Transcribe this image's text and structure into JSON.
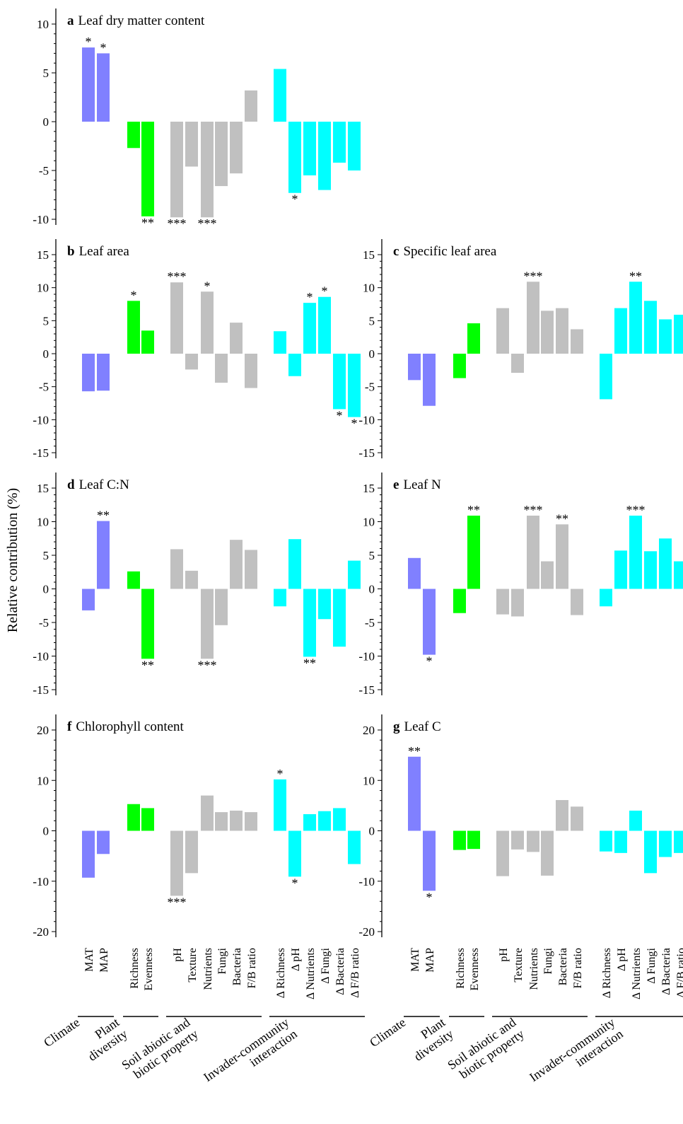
{
  "ylabel": "Relative contribution (%)",
  "colors": {
    "Climate": "#8080ff",
    "Plant diversity": "#00ff00",
    "Soil abiotic and biotic property": "#c0c0c0",
    "Invader-community interaction": "#00ffff"
  },
  "group_labels": [
    [
      "Climate"
    ],
    [
      "Plant",
      "diversity"
    ],
    [
      "Soil abiotic and",
      "biotic property"
    ],
    [
      "Invader-community",
      "interaction"
    ]
  ],
  "categories": [
    "MAT",
    "MAP",
    "Richness",
    "Evenness",
    "pH",
    "Texture",
    "Nutrients",
    "Fungi",
    "Bacteria",
    "F/B ratio",
    "Δ Richness",
    "Δ pH",
    "Δ Nutrients",
    "Δ Fungi",
    "Δ Bacteria",
    "Δ F/B ratio"
  ],
  "chart_data": [
    {
      "type": "bar",
      "letter": "a",
      "title": "Leaf dry matter content",
      "ylim": [
        -10,
        10
      ],
      "yticks": [
        -10,
        -5,
        0,
        5,
        10
      ],
      "values": [
        7.6,
        7.0,
        -2.7,
        -9.7,
        -9.8,
        -4.6,
        -9.8,
        -6.6,
        -5.3,
        3.2,
        5.4,
        -7.3,
        -5.5,
        -7.0,
        -4.2,
        -5.0
      ],
      "significance": [
        "*",
        "*",
        "",
        "**",
        "***",
        "",
        "***",
        "",
        "",
        "",
        "",
        "*",
        "",
        "",
        "",
        ""
      ]
    },
    {
      "type": "bar",
      "letter": "b",
      "title": "Leaf area",
      "ylim": [
        -15,
        15
      ],
      "yticks": [
        -15,
        -10,
        -5,
        0,
        5,
        10,
        15
      ],
      "values": [
        -5.7,
        -5.6,
        8.0,
        3.5,
        10.8,
        -2.4,
        9.4,
        -4.4,
        4.7,
        -5.2,
        3.4,
        -3.4,
        7.7,
        8.6,
        -8.4,
        -9.6
      ],
      "significance": [
        "",
        "",
        "*",
        "",
        "***",
        "",
        "*",
        "",
        "",
        "",
        "",
        "",
        "*",
        "*",
        "*",
        "*"
      ]
    },
    {
      "type": "bar",
      "letter": "c",
      "title": "Specific leaf area",
      "ylim": [
        -15,
        15
      ],
      "yticks": [
        -15,
        -10,
        -5,
        0,
        5,
        10,
        15
      ],
      "values": [
        -4.0,
        -7.9,
        -3.7,
        4.6,
        6.9,
        -2.9,
        10.9,
        6.5,
        6.9,
        3.7,
        -6.9,
        6.9,
        10.9,
        8.0,
        5.2,
        5.9
      ],
      "significance": [
        "",
        "",
        "",
        "",
        "",
        "",
        "***",
        "",
        "",
        "",
        "",
        "",
        "**",
        "",
        "",
        ""
      ]
    },
    {
      "type": "bar",
      "letter": "d",
      "title": "Leaf C:N",
      "ylim": [
        -15,
        15
      ],
      "yticks": [
        -15,
        -10,
        -5,
        0,
        5,
        10,
        15
      ],
      "values": [
        -3.2,
        10.1,
        2.6,
        -10.4,
        5.9,
        2.7,
        -10.4,
        -5.4,
        7.3,
        5.8,
        -2.6,
        7.4,
        -10.1,
        -4.5,
        -8.6,
        4.2
      ],
      "significance": [
        "",
        "**",
        "",
        "**",
        "",
        "",
        "***",
        "",
        "",
        "",
        "",
        "",
        "**",
        "",
        "",
        ""
      ]
    },
    {
      "type": "bar",
      "letter": "e",
      "title": "Leaf N",
      "ylim": [
        -15,
        15
      ],
      "yticks": [
        -15,
        -10,
        -5,
        0,
        5,
        10,
        15
      ],
      "values": [
        4.6,
        -9.8,
        -3.6,
        10.9,
        -3.8,
        -4.1,
        10.9,
        4.1,
        9.6,
        -3.9,
        -2.6,
        5.7,
        10.9,
        5.6,
        7.5,
        4.1
      ],
      "significance": [
        "",
        "*",
        "",
        "**",
        "",
        "",
        "***",
        "",
        "**",
        "",
        "",
        "",
        "***",
        "",
        "",
        ""
      ]
    },
    {
      "type": "bar",
      "letter": "f",
      "title": "Chlorophyll content",
      "ylim": [
        -20,
        20
      ],
      "yticks": [
        -20,
        -10,
        0,
        10,
        20
      ],
      "values": [
        -9.3,
        -4.6,
        5.3,
        4.5,
        -12.9,
        -8.4,
        7.0,
        3.7,
        4.0,
        3.7,
        10.2,
        -9.1,
        3.3,
        3.9,
        4.5,
        -6.6
      ],
      "significance": [
        "",
        "",
        "",
        "",
        "***",
        "",
        "",
        "",
        "",
        "",
        "*",
        "*",
        "",
        "",
        "",
        ""
      ]
    },
    {
      "type": "bar",
      "letter": "g",
      "title": "Leaf C",
      "ylim": [
        -20,
        20
      ],
      "yticks": [
        -20,
        -10,
        0,
        10,
        20
      ],
      "values": [
        14.7,
        -11.9,
        -3.8,
        -3.6,
        -9.0,
        -3.7,
        -4.2,
        -8.9,
        6.1,
        4.8,
        -4.1,
        -4.4,
        4.0,
        -8.4,
        -5.2,
        -4.4
      ],
      "significance": [
        "**",
        "*",
        "",
        "",
        "",
        "",
        "",
        "",
        "",
        "",
        "",
        "",
        "",
        "",
        "",
        ""
      ]
    }
  ]
}
